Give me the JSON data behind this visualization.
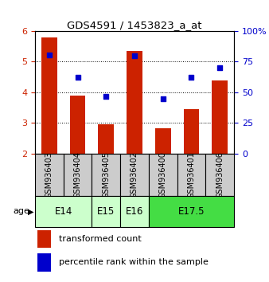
{
  "title": "GDS4591 / 1453823_a_at",
  "samples": [
    "GSM936403",
    "GSM936404",
    "GSM936405",
    "GSM936402",
    "GSM936400",
    "GSM936401",
    "GSM936406"
  ],
  "transformed_count": [
    5.8,
    3.9,
    2.95,
    5.35,
    2.82,
    3.45,
    4.4
  ],
  "percentile_rank": [
    80.5,
    62.5,
    46.5,
    80.0,
    45.0,
    62.0,
    70.0
  ],
  "age_group_spans": [
    {
      "label": "E14",
      "start": 0,
      "end": 2,
      "color": "#ccffcc"
    },
    {
      "label": "E15",
      "start": 2,
      "end": 3,
      "color": "#ccffcc"
    },
    {
      "label": "E16",
      "start": 3,
      "end": 4,
      "color": "#ccffcc"
    },
    {
      "label": "E17.5",
      "start": 4,
      "end": 7,
      "color": "#44dd44"
    }
  ],
  "bar_color": "#cc2200",
  "dot_color": "#0000cc",
  "ylim_left": [
    2,
    6
  ],
  "ylim_right": [
    0,
    100
  ],
  "yticks_left": [
    2,
    3,
    4,
    5,
    6
  ],
  "yticks_right": [
    0,
    25,
    50,
    75,
    100
  ],
  "ytick_labels_right": [
    "0",
    "25",
    "50",
    "75",
    "100%"
  ],
  "bar_bottom": 2.0,
  "dot_size": 22,
  "legend_labels": [
    "transformed count",
    "percentile rank within the sample"
  ],
  "legend_colors": [
    "#cc2200",
    "#0000cc"
  ],
  "sample_box_color": "#cccccc",
  "grid_color": "#000000",
  "title_fontsize": 9.5,
  "tick_fontsize": 8,
  "sample_fontsize": 7,
  "age_fontsize": 8.5
}
